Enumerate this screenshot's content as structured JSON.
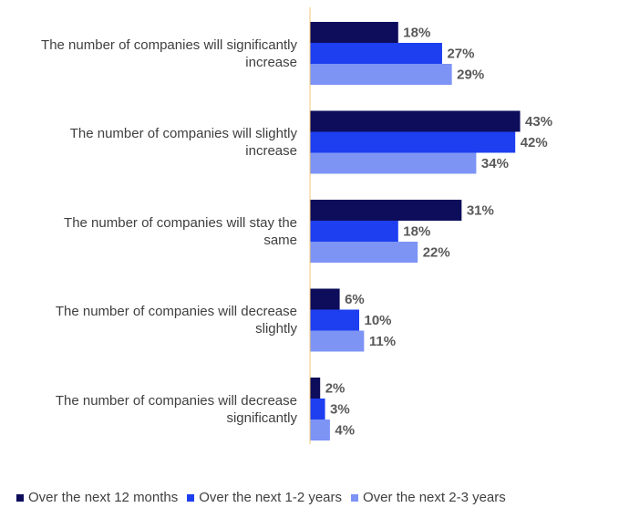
{
  "chart_data": {
    "type": "bar",
    "orientation": "horizontal",
    "categories": [
      "The number of companies will significantly increase",
      "The number of companies will slightly increase",
      "The number of companies will stay the same",
      "The number of companies will decrease slightly",
      "The number of companies will decrease significantly"
    ],
    "series": [
      {
        "name": "Over the next 12 months",
        "values": [
          18,
          43,
          31,
          6,
          2
        ],
        "color": "#0d0d5c"
      },
      {
        "name": "Over the next 1-2 years",
        "values": [
          27,
          42,
          18,
          10,
          3
        ],
        "color": "#1e3ff0"
      },
      {
        "name": "Over the next 2-3 years",
        "values": [
          29,
          34,
          22,
          11,
          4
        ],
        "color": "#7d94f5"
      }
    ],
    "value_suffix": "%",
    "xlim": [
      0,
      50
    ],
    "axis_line_color": "#f2c77a",
    "legend_position": "bottom",
    "grid": false
  }
}
